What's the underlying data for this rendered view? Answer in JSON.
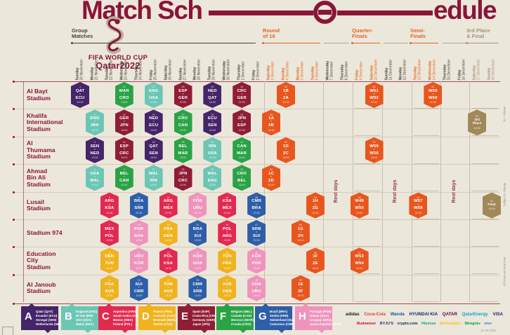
{
  "title": {
    "left": "Match Sch",
    "right": "edule"
  },
  "logo": {
    "line1": "FIFA WORLD CUP",
    "line2": "Qatar2022"
  },
  "sections": [
    {
      "id": "group",
      "lines": [
        "Group",
        "Matches"
      ]
    },
    {
      "id": "r16",
      "lines": [
        "Round",
        "of 16"
      ]
    },
    {
      "id": "qf",
      "lines": [
        "Quarter-",
        "Finals"
      ]
    },
    {
      "id": "sf",
      "lines": [
        "Semi-",
        "Finals"
      ]
    },
    {
      "id": "f3",
      "lines": [
        "3rd Place",
        "& Final"
      ]
    }
  ],
  "rest_label": "Rest days",
  "columns": [
    {
      "day": "Sunday",
      "date": "20 November",
      "phase": "group"
    },
    {
      "day": "Monday",
      "date": "21 November",
      "phase": "group"
    },
    {
      "day": "Tuesday",
      "date": "22 November",
      "phase": "group"
    },
    {
      "day": "Wednesday",
      "date": "23 November",
      "phase": "group"
    },
    {
      "day": "Thursday",
      "date": "24 November",
      "phase": "group"
    },
    {
      "day": "Friday",
      "date": "25 November",
      "phase": "group"
    },
    {
      "day": "Saturday",
      "date": "26 November",
      "phase": "group"
    },
    {
      "day": "Sunday",
      "date": "27 November",
      "phase": "group"
    },
    {
      "day": "Monday",
      "date": "28 November",
      "phase": "group"
    },
    {
      "day": "Tuesday",
      "date": "29 November",
      "phase": "group"
    },
    {
      "day": "Wednesday",
      "date": "30 November",
      "phase": "group"
    },
    {
      "day": "Thursday",
      "date": "1 December",
      "phase": "group"
    },
    {
      "day": "Friday",
      "date": "2 December",
      "phase": "group"
    },
    {
      "day": "Saturday",
      "date": "3 December",
      "phase": "r16"
    },
    {
      "day": "Sunday",
      "date": "4 December",
      "phase": "r16"
    },
    {
      "day": "Monday",
      "date": "5 December",
      "phase": "r16"
    },
    {
      "day": "Tuesday",
      "date": "6 December",
      "phase": "r16"
    },
    {
      "day": "Wednesday",
      "date": "7 December",
      "phase": "rest"
    },
    {
      "day": "Thursday",
      "date": "8 December",
      "phase": "rest"
    },
    {
      "day": "Friday",
      "date": "9 December",
      "phase": "qf"
    },
    {
      "day": "Saturday",
      "date": "10 December",
      "phase": "qf"
    },
    {
      "day": "Sunday",
      "date": "11 December",
      "phase": "rest"
    },
    {
      "day": "Monday",
      "date": "12 December",
      "phase": "rest"
    },
    {
      "day": "Tuesday",
      "date": "13 December",
      "phase": "sf"
    },
    {
      "day": "Wednesday",
      "date": "14 December",
      "phase": "sf"
    },
    {
      "day": "Thursday",
      "date": "15 December",
      "phase": "rest"
    },
    {
      "day": "Friday",
      "date": "16 December",
      "phase": "rest"
    },
    {
      "day": "Saturday",
      "date": "17 December",
      "phase": "f3"
    },
    {
      "day": "Sunday",
      "date": "18 December",
      "phase": "f3"
    }
  ],
  "stadiums": [
    {
      "lines": [
        "Al Bayt",
        "Stadium"
      ]
    },
    {
      "lines": [
        "Khalifa",
        "International",
        "Stadium"
      ]
    },
    {
      "lines": [
        "Al",
        "Thumama",
        "Stadium"
      ]
    },
    {
      "lines": [
        "Ahmad",
        "Bin Ali",
        "Stadium"
      ]
    },
    {
      "lines": [
        "Lusail",
        "Stadium"
      ]
    },
    {
      "lines": [
        "Stadium 974"
      ]
    },
    {
      "lines": [
        "Education",
        "City",
        "Stadium"
      ]
    },
    {
      "lines": [
        "Al Janoub",
        "Stadium"
      ]
    }
  ],
  "matches": [
    {
      "r": 0,
      "c": 0,
      "n": 1,
      "a": "QAT",
      "b": "ECU",
      "t": "19:00",
      "g": "A"
    },
    {
      "r": 0,
      "c": 3,
      "n": 12,
      "a": "MAR",
      "b": "CRO",
      "t": "13:00",
      "g": "F"
    },
    {
      "r": 0,
      "c": 5,
      "n": 20,
      "a": "ENG",
      "b": "USA",
      "t": "22:00",
      "g": "B"
    },
    {
      "r": 0,
      "c": 7,
      "n": 28,
      "a": "ESP",
      "b": "GER",
      "t": "22:00",
      "g": "E"
    },
    {
      "r": 0,
      "c": 9,
      "n": 34,
      "a": "NED",
      "b": "QAT",
      "t": "18:00",
      "g": "A"
    },
    {
      "r": 0,
      "c": 11,
      "n": 44,
      "a": "CRC",
      "b": "GER",
      "t": "22:00",
      "g": "E"
    },
    {
      "r": 0,
      "c": 14,
      "n": 52,
      "a": "1B",
      "b": "2A",
      "t": "22:00",
      "g": "KO"
    },
    {
      "r": 0,
      "c": 20,
      "n": 60,
      "a": "W51",
      "b": "W52",
      "t": "22:00",
      "g": "KO"
    },
    {
      "r": 0,
      "c": 24,
      "n": 62,
      "a": "W59",
      "b": "W60",
      "t": "22:00",
      "g": "KO"
    },
    {
      "r": 1,
      "c": 1,
      "n": 3,
      "a": "ENG",
      "b": "IRN",
      "t": "16:00",
      "g": "B"
    },
    {
      "r": 1,
      "c": 3,
      "n": 11,
      "a": "GER",
      "b": "JPN",
      "t": "16:00",
      "g": "E"
    },
    {
      "r": 1,
      "c": 5,
      "n": 19,
      "a": "NED",
      "b": "ECU",
      "t": "19:00",
      "g": "A"
    },
    {
      "r": 1,
      "c": 7,
      "n": 27,
      "a": "CRO",
      "b": "CAN",
      "t": "19:00",
      "g": "F"
    },
    {
      "r": 1,
      "c": 9,
      "n": 33,
      "a": "ECU",
      "b": "SEN",
      "t": "18:00",
      "g": "A"
    },
    {
      "r": 1,
      "c": 11,
      "n": 43,
      "a": "JPN",
      "b": "ESP",
      "t": "22:00",
      "g": "E"
    },
    {
      "r": 1,
      "c": 13,
      "n": 49,
      "a": "1A",
      "b": "2B",
      "t": "18:00",
      "g": "KO"
    },
    {
      "r": 1,
      "c": 27,
      "n": 63,
      "label": "3rd Place",
      "t": "18:00",
      "g": "GOLD"
    },
    {
      "r": 2,
      "c": 1,
      "n": 2,
      "a": "SEN",
      "b": "NED",
      "t": "19:00",
      "g": "A"
    },
    {
      "r": 2,
      "c": 3,
      "n": 10,
      "a": "ESP",
      "b": "CRC",
      "t": "19:00",
      "g": "E"
    },
    {
      "r": 2,
      "c": 5,
      "n": 18,
      "a": "QAT",
      "b": "SEN",
      "t": "16:00",
      "g": "A"
    },
    {
      "r": 2,
      "c": 7,
      "n": 26,
      "a": "BEL",
      "b": "MAR",
      "t": "16:00",
      "g": "F"
    },
    {
      "r": 2,
      "c": 9,
      "n": 35,
      "a": "IRN",
      "b": "USA",
      "t": "22:00",
      "g": "B"
    },
    {
      "r": 2,
      "c": 11,
      "n": 42,
      "a": "CAN",
      "b": "MAR",
      "t": "18:00",
      "g": "F"
    },
    {
      "r": 2,
      "c": 14,
      "n": 51,
      "a": "1D",
      "b": "2C",
      "t": "18:00",
      "g": "KO"
    },
    {
      "r": 2,
      "c": 20,
      "n": 59,
      "a": "W55",
      "b": "W56",
      "t": "18:00",
      "g": "KO"
    },
    {
      "r": 3,
      "c": 1,
      "n": 4,
      "a": "USA",
      "b": "WAL",
      "t": "22:00",
      "g": "B"
    },
    {
      "r": 3,
      "c": 3,
      "n": 9,
      "a": "BEL",
      "b": "CAN",
      "t": "22:00",
      "g": "F"
    },
    {
      "r": 3,
      "c": 5,
      "n": 17,
      "a": "WAL",
      "b": "IRN",
      "t": "13:00",
      "g": "B"
    },
    {
      "r": 3,
      "c": 7,
      "n": 25,
      "a": "JPN",
      "b": "CRC",
      "t": "13:00",
      "g": "E"
    },
    {
      "r": 3,
      "c": 9,
      "n": 36,
      "a": "WAL",
      "b": "ENG",
      "t": "22:00",
      "g": "B"
    },
    {
      "r": 3,
      "c": 11,
      "n": 41,
      "a": "CRO",
      "b": "BEL",
      "t": "18:00",
      "g": "F"
    },
    {
      "r": 3,
      "c": 13,
      "n": 50,
      "a": "1C",
      "b": "2D",
      "t": "22:00",
      "g": "KO"
    },
    {
      "r": 4,
      "c": 2,
      "n": 5,
      "a": "ARG",
      "b": "KSA",
      "t": "13:00",
      "g": "C"
    },
    {
      "r": 4,
      "c": 4,
      "n": 16,
      "a": "BRA",
      "b": "SRB",
      "t": "22:00",
      "g": "G"
    },
    {
      "r": 4,
      "c": 6,
      "n": 24,
      "a": "ARG",
      "b": "MEX",
      "t": "22:00",
      "g": "C"
    },
    {
      "r": 4,
      "c": 8,
      "n": 32,
      "a": "POR",
      "b": "URU",
      "t": "22:00",
      "g": "H"
    },
    {
      "r": 4,
      "c": 10,
      "n": 40,
      "a": "KSA",
      "b": "MEX",
      "t": "22:00",
      "g": "C"
    },
    {
      "r": 4,
      "c": 12,
      "n": 48,
      "a": "CMR",
      "b": "BRA",
      "t": "22:00",
      "g": "G"
    },
    {
      "r": 4,
      "c": 16,
      "n": 56,
      "a": "1H",
      "b": "2G",
      "t": "22:00",
      "g": "KO"
    },
    {
      "r": 4,
      "c": 19,
      "n": 58,
      "a": "W49",
      "b": "W50",
      "t": "22:00",
      "g": "KO"
    },
    {
      "r": 4,
      "c": 23,
      "n": 61,
      "a": "W57",
      "b": "W58",
      "t": "22:00",
      "g": "KO"
    },
    {
      "r": 4,
      "c": 28,
      "n": 64,
      "label": "Final",
      "t": "18:00",
      "g": "GOLD"
    },
    {
      "r": 5,
      "c": 2,
      "n": 7,
      "a": "MEX",
      "b": "POL",
      "t": "19:00",
      "g": "C"
    },
    {
      "r": 5,
      "c": 4,
      "n": 15,
      "a": "POR",
      "b": "GHA",
      "t": "19:00",
      "g": "H"
    },
    {
      "r": 5,
      "c": 6,
      "n": 23,
      "a": "FRA",
      "b": "DEN",
      "t": "19:00",
      "g": "D"
    },
    {
      "r": 5,
      "c": 8,
      "n": 31,
      "a": "BRA",
      "b": "SUI",
      "t": "19:00",
      "g": "G"
    },
    {
      "r": 5,
      "c": 10,
      "n": 39,
      "a": "POL",
      "b": "ARG",
      "t": "22:00",
      "g": "C"
    },
    {
      "r": 5,
      "c": 12,
      "n": 47,
      "a": "SRB",
      "b": "SUI",
      "t": "22:00",
      "g": "G"
    },
    {
      "r": 5,
      "c": 15,
      "n": 54,
      "a": "1G",
      "b": "2H",
      "t": "22:00",
      "g": "KO"
    },
    {
      "r": 6,
      "c": 2,
      "n": 6,
      "a": "DEN",
      "b": "TUN",
      "t": "16:00",
      "g": "D"
    },
    {
      "r": 6,
      "c": 4,
      "n": 14,
      "a": "URU",
      "b": "KOR",
      "t": "16:00",
      "g": "H"
    },
    {
      "r": 6,
      "c": 6,
      "n": 22,
      "a": "POL",
      "b": "KSA",
      "t": "16:00",
      "g": "C"
    },
    {
      "r": 6,
      "c": 8,
      "n": 30,
      "a": "KOR",
      "b": "GHA",
      "t": "16:00",
      "g": "H"
    },
    {
      "r": 6,
      "c": 10,
      "n": 38,
      "a": "TUN",
      "b": "FRA",
      "t": "18:00",
      "g": "D"
    },
    {
      "r": 6,
      "c": 12,
      "n": 46,
      "a": "KOR",
      "b": "POR",
      "t": "18:00",
      "g": "H"
    },
    {
      "r": 6,
      "c": 16,
      "n": 55,
      "a": "1F",
      "b": "2E",
      "t": "18:00",
      "g": "KO"
    },
    {
      "r": 6,
      "c": 19,
      "n": 57,
      "a": "W53",
      "b": "W54",
      "t": "18:00",
      "g": "KO"
    },
    {
      "r": 7,
      "c": 2,
      "n": 8,
      "a": "FRA",
      "b": "AUS",
      "t": "22:00",
      "g": "D"
    },
    {
      "r": 7,
      "c": 4,
      "n": 13,
      "a": "SUI",
      "b": "CMR",
      "t": "13:00",
      "g": "G"
    },
    {
      "r": 7,
      "c": 6,
      "n": 21,
      "a": "TUN",
      "b": "AUS",
      "t": "13:00",
      "g": "D"
    },
    {
      "r": 7,
      "c": 8,
      "n": 29,
      "a": "CMR",
      "b": "SRB",
      "t": "13:00",
      "g": "G"
    },
    {
      "r": 7,
      "c": 10,
      "n": 37,
      "a": "AUS",
      "b": "DEN",
      "t": "18:00",
      "g": "D"
    },
    {
      "r": 7,
      "c": 12,
      "n": 45,
      "a": "GHA",
      "b": "URU",
      "t": "18:00",
      "g": "H"
    },
    {
      "r": 7,
      "c": 15,
      "n": 53,
      "a": "1E",
      "b": "2F",
      "t": "18:00",
      "g": "KO"
    }
  ],
  "legend": [
    {
      "letter": "A",
      "teams": [
        "Qatar (QAT)",
        "Ecuador (ECU)",
        "Senegal (SEN)",
        "Netherlands (NED)"
      ]
    },
    {
      "letter": "B",
      "teams": [
        "England (ENG)",
        "IR Iran (IRN)",
        "USA (USA)",
        "Wales (WAL)"
      ]
    },
    {
      "letter": "C",
      "teams": [
        "Argentina (ARG)",
        "Saudi Arabia (KSA)",
        "Mexico (MEX)",
        "Poland (POL)"
      ]
    },
    {
      "letter": "D",
      "teams": [
        "France (FRA)",
        "Australia (AUS)",
        "Denmark (DEN)",
        "Tunisia (TUN)"
      ]
    },
    {
      "letter": "E",
      "teams": [
        "Spain (ESP)",
        "Costa Rica (CRC)",
        "Germany (GER)",
        "Japan (JPN)"
      ]
    },
    {
      "letter": "F",
      "teams": [
        "Belgium (BEL)",
        "Canada (CAN)",
        "Morocco (MAR)",
        "Croatia (CRO)"
      ]
    },
    {
      "letter": "G",
      "teams": [
        "Brazil (BRA)",
        "Serbia (SRB)",
        "Switzerland (SUI)",
        "Cameroon (CMR)"
      ]
    },
    {
      "letter": "H",
      "teams": [
        "Portugal (POR)",
        "Ghana (GHA)",
        "Uruguay (URU)",
        "Korea Republic (KOR)"
      ]
    }
  ],
  "sponsors": {
    "row1": [
      {
        "name": "adidas",
        "color": "#1a1a1a"
      },
      {
        "name": "Coca-Cola",
        "color": "#e03a3e"
      },
      {
        "name": "Wanda",
        "color": "#1558a7"
      },
      {
        "name": "HYUNDAI KIA",
        "color": "#0a2972"
      },
      {
        "name": "QATAR",
        "color": "#5c0632"
      },
      {
        "name": "QatarEnergy",
        "color": "#00a9ce"
      },
      {
        "name": "VISA",
        "color": "#1a1f71"
      }
    ],
    "row2": [
      {
        "name": "Budweiser",
        "color": "#c8102e"
      },
      {
        "name": "BYJU'S",
        "color": "#3b2a82"
      },
      {
        "name": "crypto.com",
        "color": "#03316c"
      },
      {
        "name": "Hisense",
        "color": "#00a68f"
      },
      {
        "name": "McDonald's",
        "color": "#ffbc0d"
      },
      {
        "name": "Mengniu",
        "color": "#00a33e"
      },
      {
        "name": "vivo",
        "color": "#3f7ee8"
      }
    ]
  },
  "notes": {
    "winner": "W = Winner",
    "subject": "Subject to change",
    "local": "All times are local time",
    "version": "11.08.2022"
  },
  "colors": {
    "A": "#452468",
    "B": "#6cc6b4",
    "C": "#e22950",
    "D": "#f0b31e",
    "E": "#8f1d35",
    "F": "#2aa346",
    "G": "#2e5ea8",
    "H": "#ef93bc",
    "KO": "#e8561e",
    "GOLD": "#a0885a",
    "maroon": "#8a1538",
    "orange_label": "#e06724",
    "tan_label": "#a59478",
    "group_label": "#4a4036",
    "background": "#ece7db"
  }
}
